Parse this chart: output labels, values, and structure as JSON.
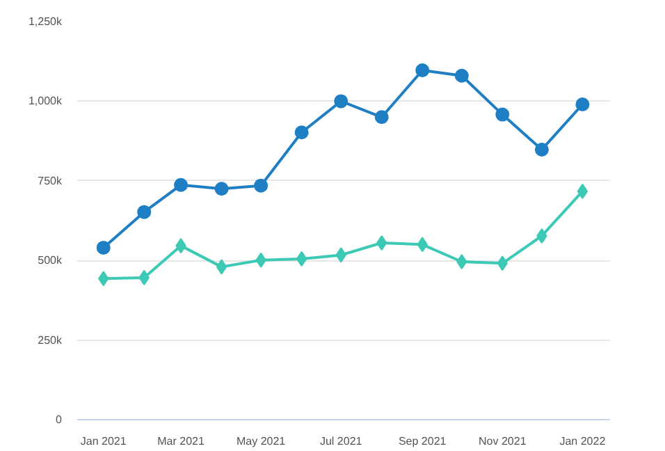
{
  "chart_data": {
    "type": "line",
    "x": [
      "2021-01",
      "2021-02",
      "2021-03",
      "2021-04",
      "2021-05",
      "2021-06",
      "2021-07",
      "2021-08",
      "2021-09",
      "2021-10",
      "2021-11",
      "2021-12",
      "2022-01"
    ],
    "series": [
      {
        "color": "#1f7fc4",
        "marker": "circle",
        "values": [
          540,
          652,
          737,
          725,
          735,
          902,
          1000,
          950,
          1097,
          1080,
          958,
          848,
          990
        ]
      },
      {
        "color": "#3cc9b5",
        "marker": "diamond",
        "values": [
          443,
          446,
          546,
          480,
          501,
          505,
          517,
          555,
          550,
          496,
          491,
          577,
          717
        ]
      }
    ],
    "xlim": [
      "2020-12-12",
      "2022-01-22"
    ],
    "xticks": [
      {
        "value": "2021-01",
        "label": "Jan 2021"
      },
      {
        "value": "2021-03",
        "label": "Mar 2021"
      },
      {
        "value": "2021-05",
        "label": "May 2021"
      },
      {
        "value": "2021-07",
        "label": "Jul 2021"
      },
      {
        "value": "2021-09",
        "label": "Sep 2021"
      },
      {
        "value": "2021-11",
        "label": "Nov 2021"
      },
      {
        "value": "2022-01",
        "label": "Jan 2022"
      }
    ],
    "ylim": [
      0,
      1250
    ],
    "yticks": [
      {
        "value": 0,
        "label": "0"
      },
      {
        "value": 250,
        "label": "250k"
      },
      {
        "value": 500,
        "label": "500k"
      },
      {
        "value": 750,
        "label": "750k"
      },
      {
        "value": 1000,
        "label": "1,000k"
      },
      {
        "value": 1250,
        "label": "1,250k"
      }
    ],
    "grid": "y",
    "line_style": "solid"
  }
}
